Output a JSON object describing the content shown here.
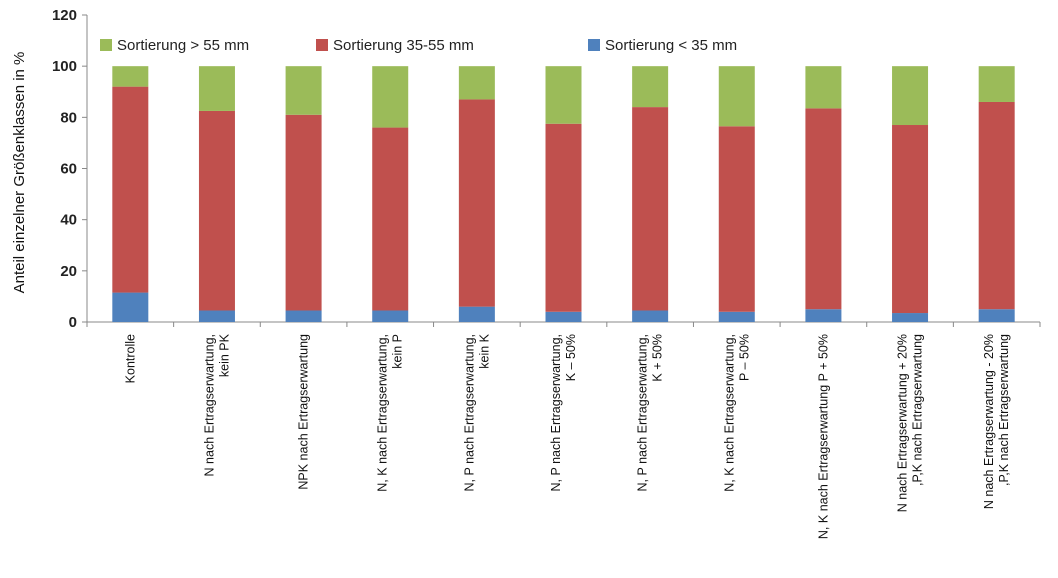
{
  "chart_data": {
    "type": "bar",
    "stacked": true,
    "title": "",
    "xlabel": "",
    "ylabel": "Anteil einzelner Größenklassen in %",
    "ylim": [
      0,
      120
    ],
    "yticks": [
      0,
      20,
      40,
      60,
      80,
      100,
      120
    ],
    "grid": false,
    "legend_position": "top",
    "categories": [
      [
        "Kontrolle"
      ],
      [
        "N nach Ertragserwartung,",
        "kein PK"
      ],
      [
        "NPK nach Ertragserwartung"
      ],
      [
        "N, K nach Ertragserwartung,",
        "kein P"
      ],
      [
        "N, P nach Ertragserwartung,",
        "kein K"
      ],
      [
        "N, P nach Ertragserwartung,",
        "K – 50%"
      ],
      [
        "N, P nach Ertragserwartung,",
        "K + 50%"
      ],
      [
        "N, K nach Ertragserwartung,",
        "P – 50%"
      ],
      [
        "N, K nach Ertragserwartung P + 50%"
      ],
      [
        "N nach Ertragserwartung + 20%",
        ",P,K nach Ertragserwartung"
      ],
      [
        "N nach Ertragserwartung - 20%",
        ",P,K nach Ertragserwartung"
      ]
    ],
    "series": [
      {
        "name": "Sortierung < 35 mm",
        "color": "#4F81BD",
        "values": [
          11.5,
          4.5,
          4.5,
          4.5,
          6.0,
          4.0,
          4.5,
          4.0,
          5.0,
          3.5,
          5.0
        ]
      },
      {
        "name": "Sortierung 35-55 mm",
        "color": "#C0504D",
        "values": [
          80.5,
          78.0,
          76.5,
          71.5,
          81.0,
          73.5,
          79.5,
          72.5,
          78.5,
          73.5,
          81.0
        ]
      },
      {
        "name": "Sortierung > 55 mm",
        "color": "#9BBB59",
        "values": [
          8.0,
          17.5,
          19.0,
          24.0,
          13.0,
          22.5,
          16.0,
          23.5,
          16.5,
          23.0,
          14.0
        ]
      }
    ],
    "legend_order": [
      "Sortierung > 55 mm",
      "Sortierung 35-55 mm",
      "Sortierung < 35 mm"
    ]
  }
}
